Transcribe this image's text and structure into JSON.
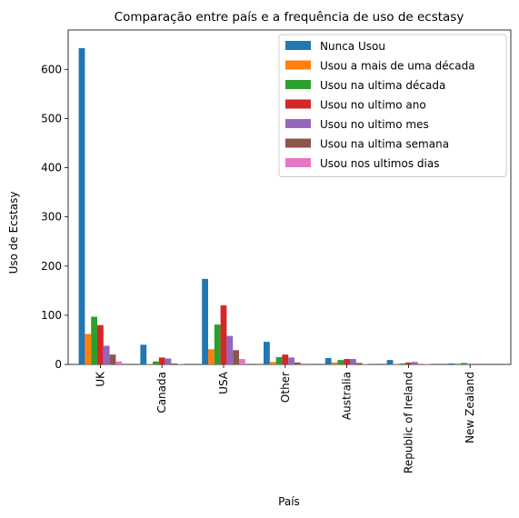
{
  "chart_data": {
    "type": "bar",
    "title": "Comparação entre país e a frequência de uso de ecstasy",
    "xlabel": "País",
    "ylabel": "Uso de Ecstasy",
    "categories": [
      "UK",
      "Canada",
      "USA",
      "Other",
      "Australia",
      "Republic of Ireland",
      "New Zealand"
    ],
    "ylim": [
      0,
      680
    ],
    "yticks": [
      0,
      100,
      200,
      300,
      400,
      500,
      600
    ],
    "grid": false,
    "legend_position": "top-right",
    "series": [
      {
        "name": "Nunca Usou",
        "color": "#1f77b4",
        "values": [
          643,
          40,
          174,
          46,
          13,
          9,
          2
        ]
      },
      {
        "name": "Usou a mais de uma década",
        "color": "#ff7f0e",
        "values": [
          62,
          1,
          31,
          5,
          4,
          1,
          0
        ]
      },
      {
        "name": "Usou na ultima década",
        "color": "#2ca02c",
        "values": [
          97,
          6,
          81,
          15,
          9,
          2,
          3
        ]
      },
      {
        "name": "Usou no ultimo ano",
        "color": "#d62728",
        "values": [
          80,
          14,
          120,
          20,
          11,
          4,
          0
        ]
      },
      {
        "name": "Usou no ultimo mes",
        "color": "#9467bd",
        "values": [
          38,
          12,
          58,
          14,
          11,
          5,
          0
        ]
      },
      {
        "name": "Usou na ultima semana",
        "color": "#8c564b",
        "values": [
          20,
          2,
          29,
          4,
          3,
          1,
          0
        ]
      },
      {
        "name": "Usou nos ultimos dias",
        "color": "#e377c2",
        "values": [
          6,
          1,
          11,
          2,
          1,
          1,
          0
        ]
      }
    ]
  }
}
